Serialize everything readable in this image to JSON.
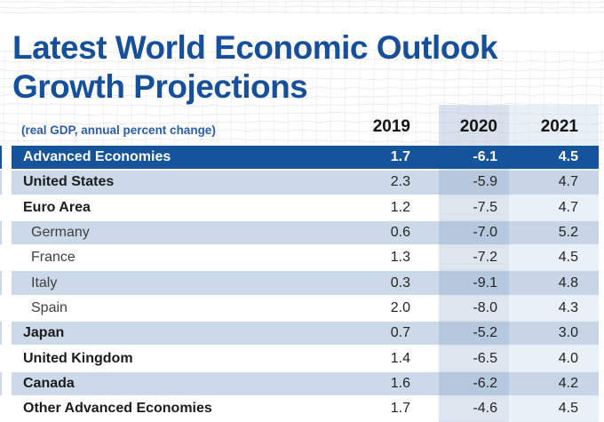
{
  "title": {
    "line1": "Latest World Economic Outlook",
    "line2": "Growth Projections"
  },
  "table": {
    "subtitle": "(real GDP, annual percent change)",
    "years": [
      "2019",
      "2020",
      "2021"
    ],
    "rows": [
      {
        "label": "Advanced Economies",
        "values": [
          "1.7",
          "-6.1",
          "4.5"
        ],
        "style": "dark",
        "indent": false
      },
      {
        "label": "United States",
        "values": [
          "2.3",
          "-5.9",
          "4.7"
        ],
        "style": "blue",
        "indent": false
      },
      {
        "label": "Euro Area",
        "values": [
          "1.2",
          "-7.5",
          "4.7"
        ],
        "style": "white",
        "indent": false
      },
      {
        "label": "Germany",
        "values": [
          "0.6",
          "-7.0",
          "5.2"
        ],
        "style": "blue",
        "indent": true
      },
      {
        "label": "France",
        "values": [
          "1.3",
          "-7.2",
          "4.5"
        ],
        "style": "white",
        "indent": true
      },
      {
        "label": "Italy",
        "values": [
          "0.3",
          "-9.1",
          "4.8"
        ],
        "style": "blue",
        "indent": true
      },
      {
        "label": "Spain",
        "values": [
          "2.0",
          "-8.0",
          "4.3"
        ],
        "style": "white",
        "indent": true
      },
      {
        "label": "Japan",
        "values": [
          "0.7",
          "-5.2",
          "3.0"
        ],
        "style": "blue",
        "indent": false
      },
      {
        "label": "United Kingdom",
        "values": [
          "1.4",
          "-6.5",
          "4.0"
        ],
        "style": "white",
        "indent": false
      },
      {
        "label": "Canada",
        "values": [
          "1.6",
          "-6.2",
          "4.2"
        ],
        "style": "blue",
        "indent": false
      },
      {
        "label": "Other Advanced Economies",
        "values": [
          "1.7",
          "-4.6",
          "4.5"
        ],
        "style": "white",
        "indent": false
      }
    ]
  },
  "colors": {
    "title_blue": "#164f9a",
    "dark_row_blue": "#15549a",
    "light_row_blue": "#cbd9e9",
    "band_2020_on_light_row": "#b6c8dd",
    "band_2020_on_white_row": "#dee5ef",
    "band_2021_on_white_row": "#eaf0f7",
    "subtitle_blue": "#2d5da7"
  },
  "chart_data": {
    "type": "table",
    "title": "Latest World Economic Outlook Growth Projections",
    "subtitle": "(real GDP, annual percent change)",
    "columns": [
      "2019",
      "2020",
      "2021"
    ],
    "rows": [
      {
        "label": "Advanced Economies",
        "values": [
          1.7,
          -6.1,
          4.5
        ],
        "group": "aggregate"
      },
      {
        "label": "United States",
        "values": [
          2.3,
          -5.9,
          4.7
        ],
        "group": "country"
      },
      {
        "label": "Euro Area",
        "values": [
          1.2,
          -7.5,
          4.7
        ],
        "group": "country"
      },
      {
        "label": "Germany",
        "values": [
          0.6,
          -7.0,
          5.2
        ],
        "group": "euro-area-member"
      },
      {
        "label": "France",
        "values": [
          1.3,
          -7.2,
          4.5
        ],
        "group": "euro-area-member"
      },
      {
        "label": "Italy",
        "values": [
          0.3,
          -9.1,
          4.8
        ],
        "group": "euro-area-member"
      },
      {
        "label": "Spain",
        "values": [
          2.0,
          -8.0,
          4.3
        ],
        "group": "euro-area-member"
      },
      {
        "label": "Japan",
        "values": [
          0.7,
          -5.2,
          3.0
        ],
        "group": "country"
      },
      {
        "label": "United Kingdom",
        "values": [
          1.4,
          -6.5,
          4.0
        ],
        "group": "country"
      },
      {
        "label": "Canada",
        "values": [
          1.6,
          -6.2,
          4.2
        ],
        "group": "country"
      },
      {
        "label": "Other Advanced Economies",
        "values": [
          1.7,
          -4.6,
          4.5
        ],
        "group": "aggregate"
      }
    ],
    "notes": "2020 and 2021 columns are shaded as projections; 2020 column has the darker band"
  }
}
